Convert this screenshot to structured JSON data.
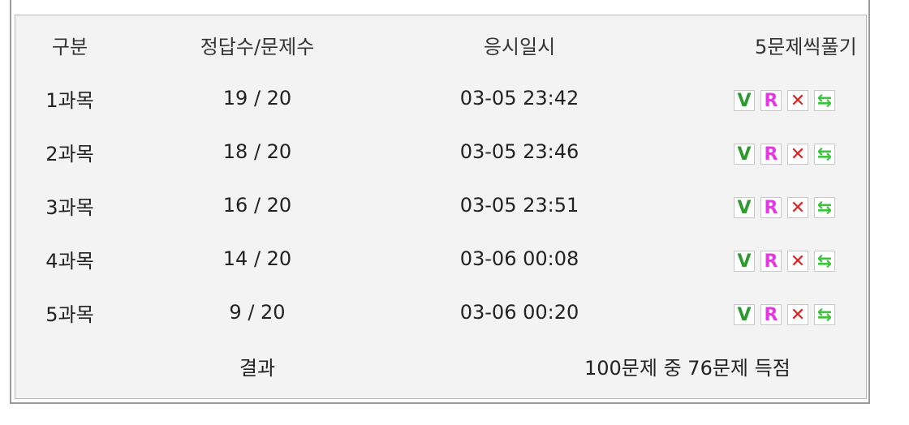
{
  "headers": {
    "category": "구분",
    "score": "정답수/문제수",
    "datetime": "응시일시",
    "practice": "5문제씩풀기"
  },
  "rows": [
    {
      "subject": "1과목",
      "score": "19 / 20",
      "datetime": "03-05 23:42"
    },
    {
      "subject": "2과목",
      "score": "18 / 20",
      "datetime": "03-05 23:46"
    },
    {
      "subject": "3과목",
      "score": "16 / 20",
      "datetime": "03-05 23:51"
    },
    {
      "subject": "4과목",
      "score": "14 / 20",
      "datetime": "03-06 00:08"
    },
    {
      "subject": "5과목",
      "score": "9 / 20",
      "datetime": "03-06 00:20"
    }
  ],
  "icon_labels": {
    "v": "V",
    "r": "R",
    "x": "✕",
    "g": "⇆"
  },
  "icons": [
    "v-check-icon",
    "review-r-icon",
    "x-wrong-icon",
    "refresh-icon"
  ],
  "result": {
    "label": "결과",
    "summary": "100문제 중 76문제 득점"
  },
  "colors": {
    "background": "#f3f3f3",
    "v_icon": "#2e9a2e",
    "r_icon": "#e03ae0",
    "x_icon": "#e02020",
    "g_icon": "#3cc43c"
  }
}
